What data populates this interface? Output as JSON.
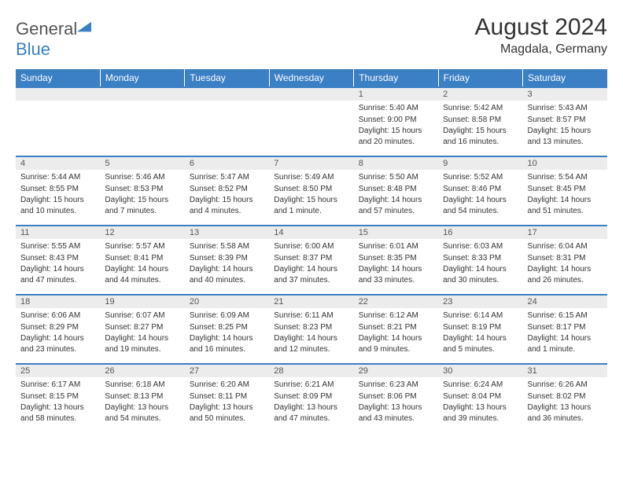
{
  "brand": {
    "part1": "General",
    "part2": "Blue"
  },
  "title": "August 2024",
  "location": "Magdala, Germany",
  "colors": {
    "header_bg": "#3b7fc4",
    "header_text": "#ffffff",
    "daynum_bg": "#ececec",
    "border": "#3b7fc4",
    "text": "#333333"
  },
  "typography": {
    "title_fontsize": 30,
    "subtitle_fontsize": 16,
    "header_fontsize": 12,
    "daynum_fontsize": 11,
    "body_fontsize": 10
  },
  "calendar": {
    "columns": [
      "Sunday",
      "Monday",
      "Tuesday",
      "Wednesday",
      "Thursday",
      "Friday",
      "Saturday"
    ],
    "weeks": [
      [
        {
          "day": "",
          "sunrise": "",
          "sunset": "",
          "daylight": ""
        },
        {
          "day": "",
          "sunrise": "",
          "sunset": "",
          "daylight": ""
        },
        {
          "day": "",
          "sunrise": "",
          "sunset": "",
          "daylight": ""
        },
        {
          "day": "",
          "sunrise": "",
          "sunset": "",
          "daylight": ""
        },
        {
          "day": "1",
          "sunrise": "Sunrise: 5:40 AM",
          "sunset": "Sunset: 9:00 PM",
          "daylight": "Daylight: 15 hours and 20 minutes."
        },
        {
          "day": "2",
          "sunrise": "Sunrise: 5:42 AM",
          "sunset": "Sunset: 8:58 PM",
          "daylight": "Daylight: 15 hours and 16 minutes."
        },
        {
          "day": "3",
          "sunrise": "Sunrise: 5:43 AM",
          "sunset": "Sunset: 8:57 PM",
          "daylight": "Daylight: 15 hours and 13 minutes."
        }
      ],
      [
        {
          "day": "4",
          "sunrise": "Sunrise: 5:44 AM",
          "sunset": "Sunset: 8:55 PM",
          "daylight": "Daylight: 15 hours and 10 minutes."
        },
        {
          "day": "5",
          "sunrise": "Sunrise: 5:46 AM",
          "sunset": "Sunset: 8:53 PM",
          "daylight": "Daylight: 15 hours and 7 minutes."
        },
        {
          "day": "6",
          "sunrise": "Sunrise: 5:47 AM",
          "sunset": "Sunset: 8:52 PM",
          "daylight": "Daylight: 15 hours and 4 minutes."
        },
        {
          "day": "7",
          "sunrise": "Sunrise: 5:49 AM",
          "sunset": "Sunset: 8:50 PM",
          "daylight": "Daylight: 15 hours and 1 minute."
        },
        {
          "day": "8",
          "sunrise": "Sunrise: 5:50 AM",
          "sunset": "Sunset: 8:48 PM",
          "daylight": "Daylight: 14 hours and 57 minutes."
        },
        {
          "day": "9",
          "sunrise": "Sunrise: 5:52 AM",
          "sunset": "Sunset: 8:46 PM",
          "daylight": "Daylight: 14 hours and 54 minutes."
        },
        {
          "day": "10",
          "sunrise": "Sunrise: 5:54 AM",
          "sunset": "Sunset: 8:45 PM",
          "daylight": "Daylight: 14 hours and 51 minutes."
        }
      ],
      [
        {
          "day": "11",
          "sunrise": "Sunrise: 5:55 AM",
          "sunset": "Sunset: 8:43 PM",
          "daylight": "Daylight: 14 hours and 47 minutes."
        },
        {
          "day": "12",
          "sunrise": "Sunrise: 5:57 AM",
          "sunset": "Sunset: 8:41 PM",
          "daylight": "Daylight: 14 hours and 44 minutes."
        },
        {
          "day": "13",
          "sunrise": "Sunrise: 5:58 AM",
          "sunset": "Sunset: 8:39 PM",
          "daylight": "Daylight: 14 hours and 40 minutes."
        },
        {
          "day": "14",
          "sunrise": "Sunrise: 6:00 AM",
          "sunset": "Sunset: 8:37 PM",
          "daylight": "Daylight: 14 hours and 37 minutes."
        },
        {
          "day": "15",
          "sunrise": "Sunrise: 6:01 AM",
          "sunset": "Sunset: 8:35 PM",
          "daylight": "Daylight: 14 hours and 33 minutes."
        },
        {
          "day": "16",
          "sunrise": "Sunrise: 6:03 AM",
          "sunset": "Sunset: 8:33 PM",
          "daylight": "Daylight: 14 hours and 30 minutes."
        },
        {
          "day": "17",
          "sunrise": "Sunrise: 6:04 AM",
          "sunset": "Sunset: 8:31 PM",
          "daylight": "Daylight: 14 hours and 26 minutes."
        }
      ],
      [
        {
          "day": "18",
          "sunrise": "Sunrise: 6:06 AM",
          "sunset": "Sunset: 8:29 PM",
          "daylight": "Daylight: 14 hours and 23 minutes."
        },
        {
          "day": "19",
          "sunrise": "Sunrise: 6:07 AM",
          "sunset": "Sunset: 8:27 PM",
          "daylight": "Daylight: 14 hours and 19 minutes."
        },
        {
          "day": "20",
          "sunrise": "Sunrise: 6:09 AM",
          "sunset": "Sunset: 8:25 PM",
          "daylight": "Daylight: 14 hours and 16 minutes."
        },
        {
          "day": "21",
          "sunrise": "Sunrise: 6:11 AM",
          "sunset": "Sunset: 8:23 PM",
          "daylight": "Daylight: 14 hours and 12 minutes."
        },
        {
          "day": "22",
          "sunrise": "Sunrise: 6:12 AM",
          "sunset": "Sunset: 8:21 PM",
          "daylight": "Daylight: 14 hours and 9 minutes."
        },
        {
          "day": "23",
          "sunrise": "Sunrise: 6:14 AM",
          "sunset": "Sunset: 8:19 PM",
          "daylight": "Daylight: 14 hours and 5 minutes."
        },
        {
          "day": "24",
          "sunrise": "Sunrise: 6:15 AM",
          "sunset": "Sunset: 8:17 PM",
          "daylight": "Daylight: 14 hours and 1 minute."
        }
      ],
      [
        {
          "day": "25",
          "sunrise": "Sunrise: 6:17 AM",
          "sunset": "Sunset: 8:15 PM",
          "daylight": "Daylight: 13 hours and 58 minutes."
        },
        {
          "day": "26",
          "sunrise": "Sunrise: 6:18 AM",
          "sunset": "Sunset: 8:13 PM",
          "daylight": "Daylight: 13 hours and 54 minutes."
        },
        {
          "day": "27",
          "sunrise": "Sunrise: 6:20 AM",
          "sunset": "Sunset: 8:11 PM",
          "daylight": "Daylight: 13 hours and 50 minutes."
        },
        {
          "day": "28",
          "sunrise": "Sunrise: 6:21 AM",
          "sunset": "Sunset: 8:09 PM",
          "daylight": "Daylight: 13 hours and 47 minutes."
        },
        {
          "day": "29",
          "sunrise": "Sunrise: 6:23 AM",
          "sunset": "Sunset: 8:06 PM",
          "daylight": "Daylight: 13 hours and 43 minutes."
        },
        {
          "day": "30",
          "sunrise": "Sunrise: 6:24 AM",
          "sunset": "Sunset: 8:04 PM",
          "daylight": "Daylight: 13 hours and 39 minutes."
        },
        {
          "day": "31",
          "sunrise": "Sunrise: 6:26 AM",
          "sunset": "Sunset: 8:02 PM",
          "daylight": "Daylight: 13 hours and 36 minutes."
        }
      ]
    ]
  }
}
